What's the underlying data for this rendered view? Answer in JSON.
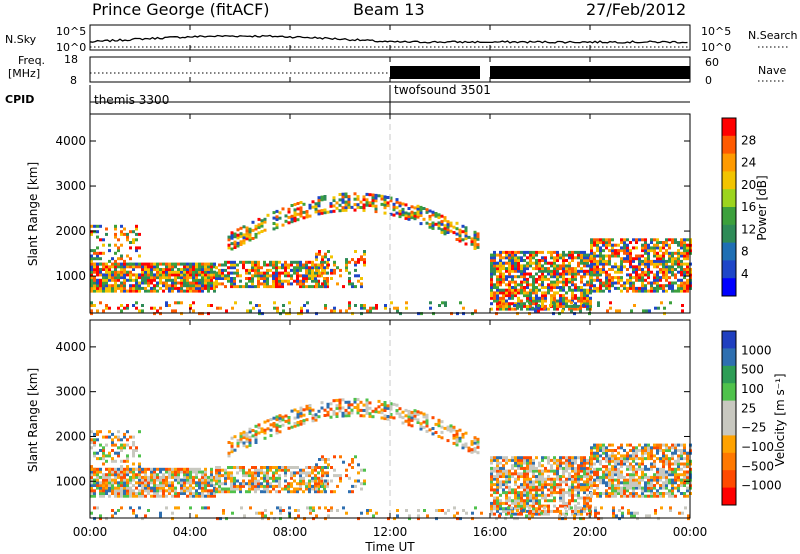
{
  "header": {
    "station": "Prince George (fitACF)",
    "beam": "Beam 13",
    "date": "27/Feb/2012"
  },
  "strip_labels": {
    "nsky": "N.Sky",
    "nsky_ticks": [
      "10^5",
      "10^0"
    ],
    "nsearch": "N.Search",
    "nsearch_ticks": [
      "10^5",
      "10^0"
    ],
    "freq_line1": "Freq.",
    "freq_line2": "[MHz]",
    "freq_ticks": [
      "18",
      "8"
    ],
    "nave": "Nave",
    "nave_ticks": [
      "60",
      "0"
    ],
    "cpid": "CPID"
  },
  "cpid_segments": [
    {
      "name": "themis 3300",
      "start_hour": 0
    },
    {
      "name": "twofsound 3501",
      "start_hour": 12
    }
  ],
  "chart_data": [
    {
      "type": "heatmap",
      "title": "Power [dB]",
      "xlabel": "Time UT",
      "ylabel": "Slant Range [km]",
      "x_ticks": [
        "00:00",
        "04:00",
        "08:00",
        "12:00",
        "16:00",
        "20:00",
        "00:00"
      ],
      "xlim_hours": [
        0,
        24
      ],
      "y_ticks": [
        1000,
        2000,
        3000,
        4000
      ],
      "ylim_km": [
        180,
        4600
      ],
      "colorbar_label": "Power [dB]",
      "colorbar_ticks": [
        "28",
        "24",
        "20",
        "16",
        "12",
        "8",
        "4"
      ],
      "colorbar_colors": [
        "#ff0000",
        "#ff5a00",
        "#ff9a00",
        "#f2c400",
        "#9cd41e",
        "#3ca03c",
        "#2e8b57",
        "#1f6fb4",
        "#1e46c8",
        "#0000ff"
      ],
      "gap_hours": [
        15.6,
        16.0
      ],
      "divider_hour": 12
    },
    {
      "type": "heatmap",
      "title": "Velocity [m s^-1]",
      "xlabel": "Time UT",
      "ylabel": "Slant Range [km]",
      "x_ticks": [
        "00:00",
        "04:00",
        "08:00",
        "12:00",
        "16:00",
        "20:00",
        "00:00"
      ],
      "xlim_hours": [
        0,
        24
      ],
      "y_ticks": [
        1000,
        2000,
        3000,
        4000
      ],
      "ylim_km": [
        180,
        4600
      ],
      "colorbar_label": "Velocity [m s⁻¹]",
      "colorbar_ticks": [
        "1000",
        "500",
        "100",
        "25",
        "−25",
        "−100",
        "−500",
        "−1000"
      ],
      "colorbar_colors": [
        "#1f3fbf",
        "#2e6fb0",
        "#2d9d55",
        "#4fc24b",
        "#c8c8c0",
        "#c8c8c0",
        "#ffa200",
        "#ff7800",
        "#ff4a00",
        "#ff0000"
      ],
      "gap_hours": [
        15.6,
        16.0
      ],
      "divider_hour": 12
    }
  ]
}
